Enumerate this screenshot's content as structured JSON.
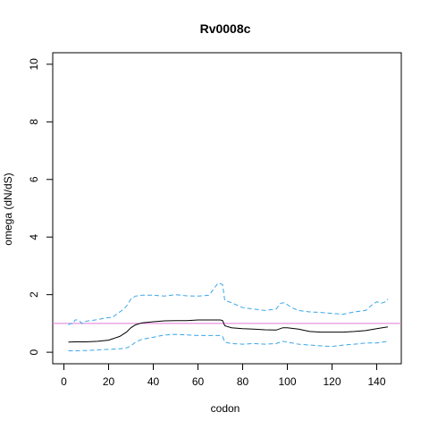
{
  "chart_data": {
    "type": "line",
    "title": "Rv0008c",
    "xlabel": "codon",
    "ylabel": "omega (dN/dS)",
    "xlim": [
      -5,
      151
    ],
    "ylim": [
      -0.4,
      10.4
    ],
    "x_ticks": [
      0,
      20,
      40,
      60,
      80,
      100,
      120,
      140
    ],
    "y_ticks": [
      0,
      2,
      4,
      6,
      8,
      10
    ],
    "x_tick_labels": [
      "0",
      "20",
      "40",
      "60",
      "80",
      "100",
      "120",
      "140"
    ],
    "y_tick_labels": [
      "0",
      "2",
      "4",
      "6",
      "8",
      "10"
    ],
    "grid": false,
    "legend": "none",
    "reference_line": {
      "y": 1.0,
      "color": "#e07ad8"
    },
    "series": [
      {
        "role": "upper-bound",
        "style": "dashed",
        "color": "#3aa6e8",
        "x": [
          2,
          3,
          4,
          5,
          6,
          7,
          8,
          10,
          12,
          14,
          16,
          18,
          20,
          22,
          24,
          26,
          28,
          30,
          32,
          35,
          40,
          45,
          50,
          55,
          60,
          65,
          68,
          69,
          70,
          71,
          72,
          75,
          80,
          85,
          90,
          95,
          97,
          99,
          100,
          102,
          105,
          110,
          115,
          120,
          125,
          130,
          135,
          138,
          140,
          142,
          144,
          145
        ],
        "values": [
          0.95,
          1.0,
          0.98,
          1.12,
          1.12,
          1.08,
          1.0,
          1.08,
          1.1,
          1.12,
          1.15,
          1.18,
          1.2,
          1.22,
          1.35,
          1.45,
          1.6,
          1.85,
          1.95,
          1.98,
          1.98,
          1.95,
          2.0,
          1.96,
          1.95,
          1.98,
          2.3,
          2.4,
          2.38,
          2.35,
          1.8,
          1.72,
          1.55,
          1.5,
          1.45,
          1.5,
          1.7,
          1.72,
          1.65,
          1.55,
          1.45,
          1.4,
          1.38,
          1.35,
          1.32,
          1.4,
          1.45,
          1.65,
          1.75,
          1.7,
          1.75,
          1.85
        ]
      },
      {
        "role": "estimate",
        "style": "solid",
        "color": "#000000",
        "x": [
          2,
          5,
          10,
          15,
          20,
          25,
          28,
          30,
          32,
          35,
          40,
          45,
          50,
          55,
          60,
          65,
          70,
          71,
          72,
          75,
          80,
          85,
          90,
          95,
          98,
          100,
          105,
          110,
          115,
          120,
          125,
          130,
          135,
          140,
          145
        ],
        "values": [
          0.35,
          0.36,
          0.36,
          0.38,
          0.42,
          0.55,
          0.7,
          0.85,
          0.95,
          1.02,
          1.06,
          1.09,
          1.1,
          1.1,
          1.12,
          1.12,
          1.12,
          1.1,
          0.92,
          0.85,
          0.82,
          0.8,
          0.78,
          0.77,
          0.85,
          0.85,
          0.8,
          0.72,
          0.7,
          0.7,
          0.7,
          0.72,
          0.75,
          0.82,
          0.88
        ]
      },
      {
        "role": "lower-bound",
        "style": "dashed",
        "color": "#3aa6e8",
        "x": [
          2,
          5,
          10,
          15,
          20,
          25,
          28,
          30,
          32,
          35,
          40,
          45,
          50,
          55,
          60,
          65,
          70,
          71,
          72,
          75,
          80,
          85,
          90,
          95,
          98,
          100,
          105,
          110,
          115,
          120,
          125,
          130,
          135,
          140,
          145
        ],
        "values": [
          0.05,
          0.05,
          0.06,
          0.08,
          0.1,
          0.12,
          0.15,
          0.22,
          0.35,
          0.45,
          0.52,
          0.6,
          0.62,
          0.6,
          0.58,
          0.58,
          0.58,
          0.55,
          0.35,
          0.3,
          0.28,
          0.3,
          0.28,
          0.3,
          0.38,
          0.35,
          0.28,
          0.25,
          0.22,
          0.2,
          0.25,
          0.28,
          0.32,
          0.32,
          0.38
        ]
      }
    ]
  }
}
